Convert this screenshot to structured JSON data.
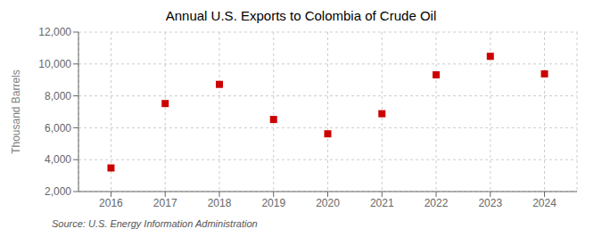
{
  "chart_data": {
    "type": "scatter",
    "title": "Annual U.S. Exports to Colombia of Crude Oil",
    "ylabel": "Thousand Barrels",
    "annotation": "Source: U.S. Energy Information Administration",
    "x": [
      2016,
      2017,
      2018,
      2019,
      2020,
      2021,
      2022,
      2023,
      2024
    ],
    "values": [
      3480,
      7520,
      8720,
      6520,
      5620,
      6880,
      9320,
      10480,
      9380
    ],
    "color": "#cc0000",
    "marker": "square",
    "xlim": [
      2015.4,
      2024.6
    ],
    "xticks": [
      2016,
      2017,
      2018,
      2019,
      2020,
      2021,
      2022,
      2023,
      2024
    ],
    "ylim": [
      2000,
      12000
    ],
    "yticks": [
      {
        "value": 2000,
        "label": "2,000"
      },
      {
        "value": 4000,
        "label": "4,000"
      },
      {
        "value": 6000,
        "label": "6,000"
      },
      {
        "value": 8000,
        "label": "8,000"
      },
      {
        "value": 10000,
        "label": "10,000"
      },
      {
        "value": 12000,
        "label": "12,000"
      }
    ],
    "grid": true
  }
}
